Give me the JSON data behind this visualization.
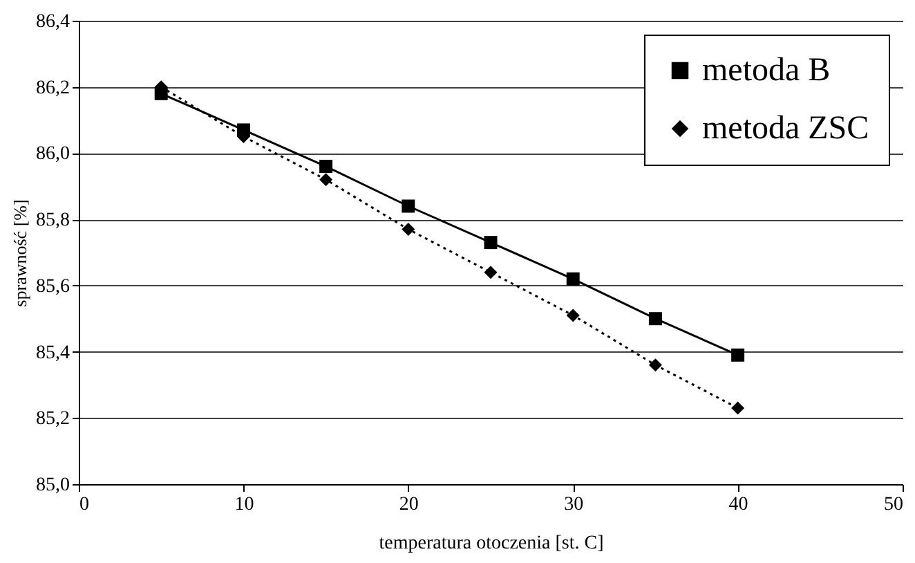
{
  "chart_data": {
    "type": "line",
    "xlabel": "temperatura otoczenia [st. C]",
    "ylabel": "sprawność [%]",
    "x": [
      5,
      10,
      15,
      20,
      25,
      30,
      35,
      40
    ],
    "series": [
      {
        "name": "metoda B",
        "color": "#000000",
        "marker": "square",
        "line_style": "solid",
        "values": [
          86.18,
          86.07,
          85.96,
          85.84,
          85.73,
          85.62,
          85.5,
          85.39
        ]
      },
      {
        "name": "metoda ZSC",
        "color": "#000000",
        "marker": "diamond",
        "line_style": "dotted",
        "values": [
          86.2,
          86.05,
          85.92,
          85.77,
          85.64,
          85.51,
          85.36,
          85.23
        ]
      }
    ],
    "xlim": [
      0,
      50
    ],
    "xticks": [
      0,
      10,
      20,
      30,
      40,
      50
    ],
    "ylim": [
      85.0,
      86.4
    ],
    "yticks": [
      {
        "value": 85.0,
        "label": "85,0"
      },
      {
        "value": 85.2,
        "label": "85,2"
      },
      {
        "value": 85.4,
        "label": "85,4"
      },
      {
        "value": 85.6,
        "label": "85,6"
      },
      {
        "value": 85.8,
        "label": "85,8"
      },
      {
        "value": 86.0,
        "label": "86,0"
      },
      {
        "value": 86.2,
        "label": "86,2"
      },
      {
        "value": 86.4,
        "label": "86,4"
      }
    ],
    "grid": "y",
    "legend": "top right"
  }
}
